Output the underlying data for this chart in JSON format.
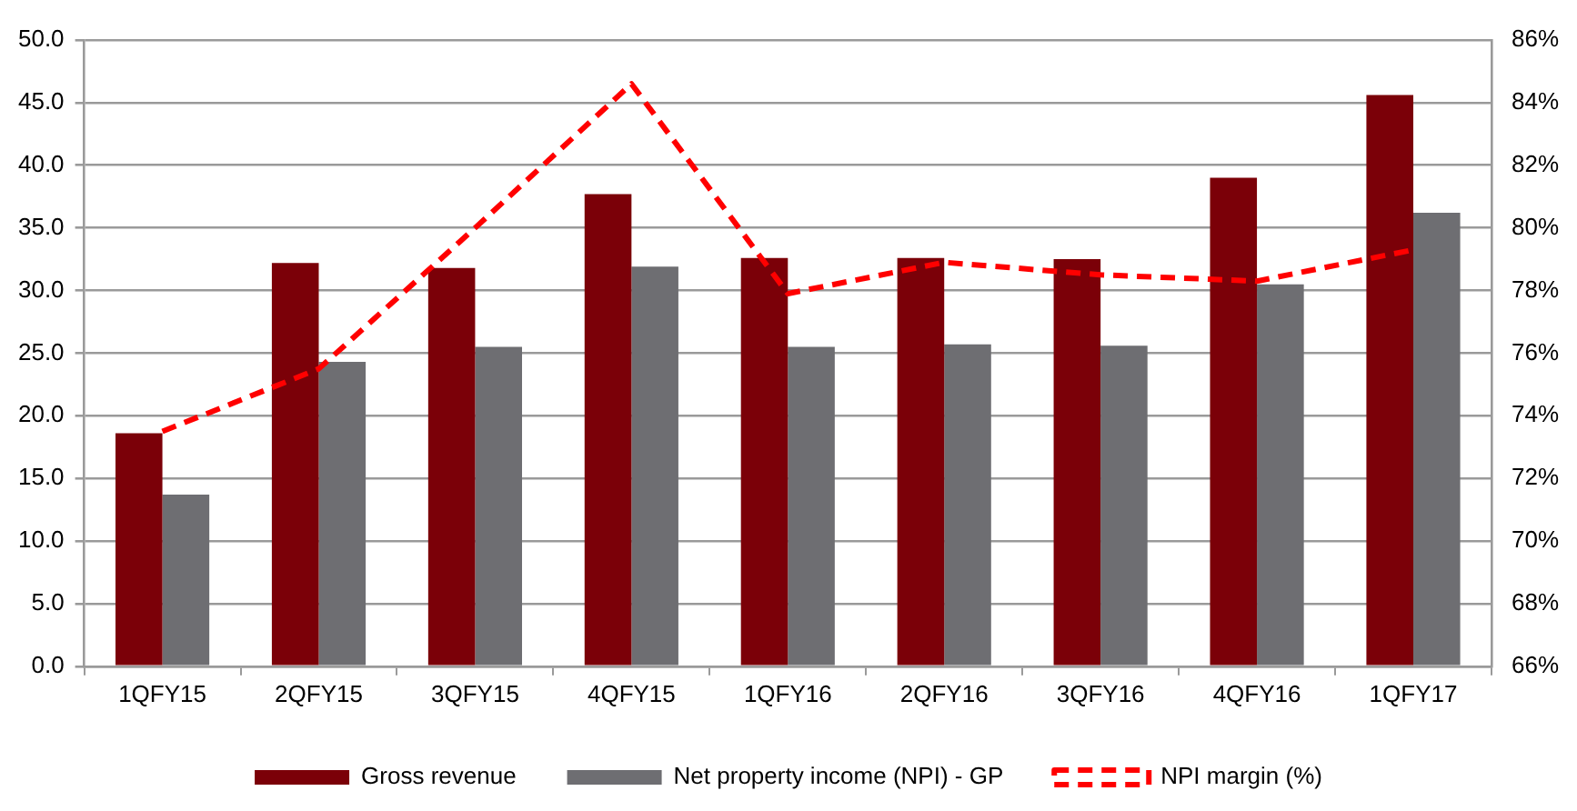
{
  "chart_data": {
    "type": "bar",
    "categories": [
      "1QFY15",
      "2QFY15",
      "3QFY15",
      "4QFY15",
      "1QFY16",
      "2QFY16",
      "3QFY16",
      "4QFY16",
      "1QFY17"
    ],
    "series": [
      {
        "name": "Gross revenue",
        "color": "#7b0008",
        "values": [
          18.6,
          32.2,
          31.8,
          37.7,
          32.6,
          32.6,
          32.5,
          39.0,
          45.6
        ]
      },
      {
        "name": "Net property income (NPI) - GP",
        "color": "#6e6e72",
        "values": [
          13.7,
          24.3,
          25.5,
          31.9,
          25.5,
          25.7,
          25.6,
          30.5,
          36.2
        ]
      },
      {
        "name": "NPI margin (%)",
        "type": "line",
        "axis": "y2",
        "color": "#ff0000",
        "line_style": "dashed",
        "values": [
          73.5,
          75.5,
          80.0,
          84.6,
          77.9,
          78.9,
          78.5,
          78.3,
          79.3
        ]
      }
    ],
    "ylim": [
      0,
      50
    ],
    "yticks": [
      {
        "value": 0,
        "label": "0.0"
      },
      {
        "value": 5,
        "label": "5.0"
      },
      {
        "value": 10,
        "label": "10.0"
      },
      {
        "value": 15,
        "label": "15.0"
      },
      {
        "value": 20,
        "label": "20.0"
      },
      {
        "value": 25,
        "label": "25.0"
      },
      {
        "value": 30,
        "label": "30.0"
      },
      {
        "value": 35,
        "label": "35.0"
      },
      {
        "value": 40,
        "label": "40.0"
      },
      {
        "value": 45,
        "label": "45.0"
      },
      {
        "value": 50,
        "label": "50.0"
      }
    ],
    "y2lim": [
      66,
      86
    ],
    "y2ticks": [
      {
        "value": 66,
        "label": "66%"
      },
      {
        "value": 68,
        "label": "68%"
      },
      {
        "value": 70,
        "label": "70%"
      },
      {
        "value": 72,
        "label": "72%"
      },
      {
        "value": 74,
        "label": "74%"
      },
      {
        "value": 76,
        "label": "76%"
      },
      {
        "value": 78,
        "label": "78%"
      },
      {
        "value": 80,
        "label": "80%"
      },
      {
        "value": 82,
        "label": "82%"
      },
      {
        "value": 84,
        "label": "84%"
      },
      {
        "value": 86,
        "label": "86%"
      }
    ],
    "grid": "y",
    "legend": "bottom",
    "marker": "none"
  }
}
